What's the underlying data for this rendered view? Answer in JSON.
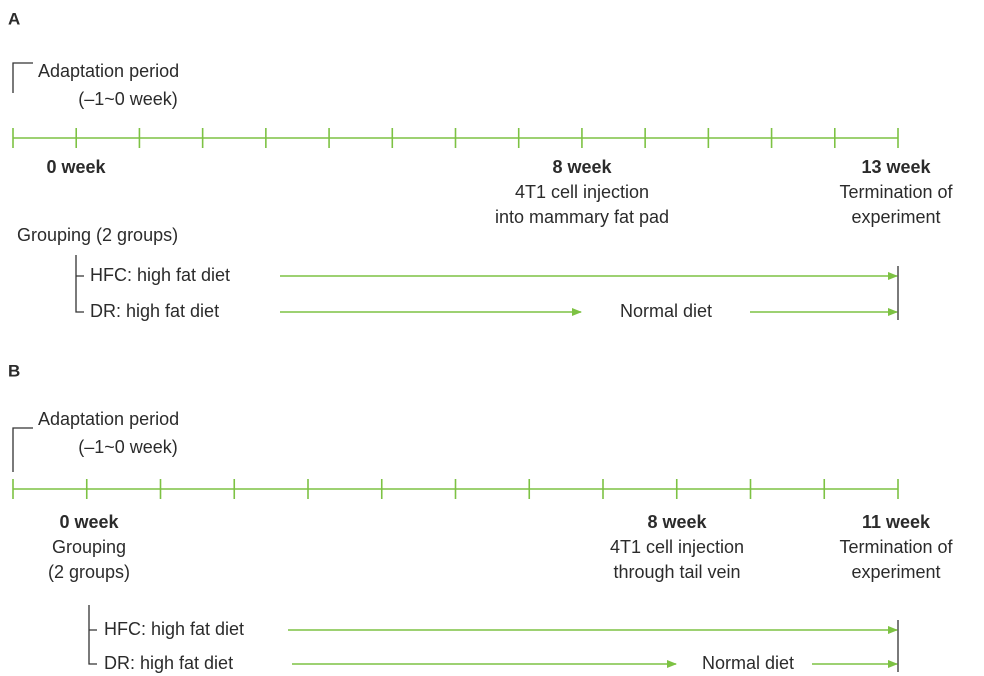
{
  "panels": [
    {
      "label": "A",
      "adaptation": [
        "Adaptation period",
        "(–1~0 week)"
      ],
      "timepoints": [
        {
          "week": "0 week",
          "notes": []
        },
        {
          "week": "8 week",
          "notes": [
            "4T1 cell injection",
            "into mammary fat pad"
          ]
        },
        {
          "week": "13 week",
          "notes": [
            "Termination of",
            "experiment"
          ]
        }
      ],
      "grouping": "Grouping (2 groups)",
      "groups": [
        {
          "name": "HFC: high fat diet"
        },
        {
          "name": "DR: high fat diet",
          "switch": "Normal diet"
        }
      ]
    },
    {
      "label": "B",
      "adaptation": [
        "Adaptation period",
        "(–1~0 week)"
      ],
      "timepoints": [
        {
          "week": "0 week",
          "notes": [
            "Grouping",
            "(2 groups)"
          ]
        },
        {
          "week": "8 week",
          "notes": [
            "4T1 cell injection",
            "through tail vein"
          ]
        },
        {
          "week": "11 week",
          "notes": [
            "Termination of",
            "experiment"
          ]
        }
      ],
      "groups": [
        {
          "name": "HFC: high fat diet"
        },
        {
          "name": "DR: high fat diet",
          "switch": "Normal diet"
        }
      ]
    }
  ]
}
